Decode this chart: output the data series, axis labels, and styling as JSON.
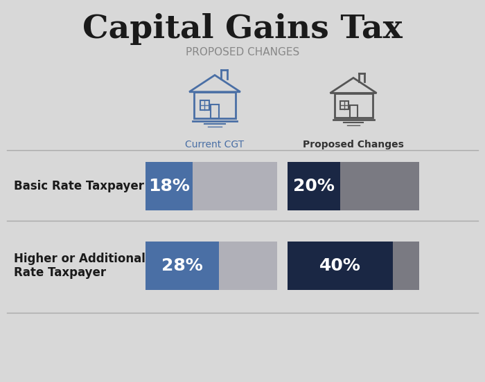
{
  "title": "Capital Gains Tax",
  "subtitle": "PROPOSED CHANGES",
  "background_color": "#d8d8d8",
  "title_color": "#1a1a1a",
  "subtitle_color": "#888888",
  "current_label": "Current CGT",
  "proposed_label": "Proposed Changes",
  "current_label_color": "#4a6fa5",
  "proposed_label_color": "#333333",
  "rows": [
    {
      "label": "Basic Rate Taxpayer",
      "current_pct": 18,
      "proposed_pct": 20,
      "current_text": "18%",
      "proposed_text": "20%"
    },
    {
      "label": "Higher or Additional\nRate Taxpayer",
      "current_pct": 28,
      "proposed_pct": 40,
      "current_text": "28%",
      "proposed_text": "40%"
    }
  ],
  "current_bar_color": "#4a6fa5",
  "proposed_bar_color": "#1a2744",
  "remainder_color_current": "#b0b0b8",
  "remainder_color_proposed": "#7a7a82",
  "divider_color": "#aaaaaa",
  "bar_text_color": "#ffffff",
  "row_label_color": "#1a1a1a",
  "max_pct": 50,
  "house_current_color": "#4a6fa5",
  "house_proposed_color": "#555555"
}
